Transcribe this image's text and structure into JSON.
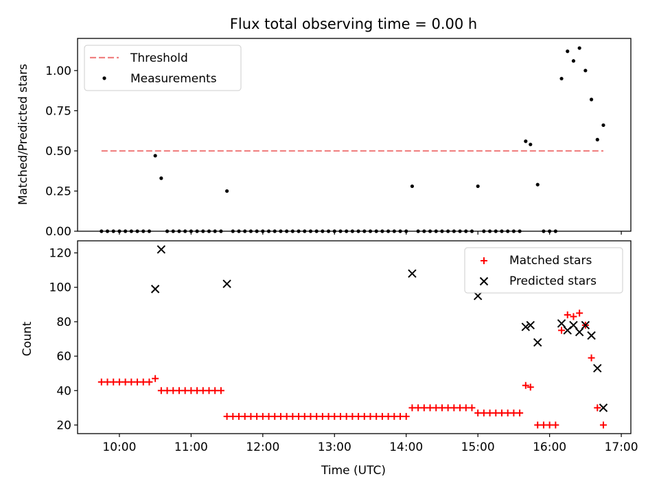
{
  "chart_data": [
    {
      "type": "scatter",
      "title": "Flux total observing time = 0.00 h",
      "ylabel": "Matched/Predicted stars",
      "xlabel": "",
      "x_axis": "time",
      "xlim": [
        "09:25",
        "17:08"
      ],
      "ylim": [
        0,
        1.2
      ],
      "yticks": [
        "0.00",
        "0.25",
        "0.50",
        "0.75",
        "1.00"
      ],
      "xticks": [
        "10:00",
        "11:00",
        "12:00",
        "13:00",
        "14:00",
        "15:00",
        "16:00",
        "17:00"
      ],
      "show_xtick_labels": false,
      "grid": false,
      "legend": "top-left",
      "threshold": {
        "name": "Threshold",
        "value": 0.5,
        "x": [
          "09:45",
          "16:45"
        ],
        "color": "#f08080",
        "style": "dashed"
      },
      "series": [
        {
          "name": "Measurements",
          "color": "#000000",
          "marker": "dot",
          "points": [
            [
              "09:45",
              0
            ],
            [
              "09:50",
              0
            ],
            [
              "09:55",
              0
            ],
            [
              "10:00",
              0
            ],
            [
              "10:05",
              0
            ],
            [
              "10:10",
              0
            ],
            [
              "10:15",
              0
            ],
            [
              "10:20",
              0
            ],
            [
              "10:25",
              0
            ],
            [
              "10:30",
              0.47
            ],
            [
              "10:35",
              0.33
            ],
            [
              "10:40",
              0
            ],
            [
              "10:45",
              0
            ],
            [
              "10:50",
              0
            ],
            [
              "10:55",
              0
            ],
            [
              "11:00",
              0
            ],
            [
              "11:05",
              0
            ],
            [
              "11:10",
              0
            ],
            [
              "11:15",
              0
            ],
            [
              "11:20",
              0
            ],
            [
              "11:25",
              0
            ],
            [
              "11:30",
              0.25
            ],
            [
              "11:35",
              0
            ],
            [
              "11:40",
              0
            ],
            [
              "11:45",
              0
            ],
            [
              "11:50",
              0
            ],
            [
              "11:55",
              0
            ],
            [
              "12:00",
              0
            ],
            [
              "12:05",
              0
            ],
            [
              "12:10",
              0
            ],
            [
              "12:15",
              0
            ],
            [
              "12:20",
              0
            ],
            [
              "12:25",
              0
            ],
            [
              "12:30",
              0
            ],
            [
              "12:35",
              0
            ],
            [
              "12:40",
              0
            ],
            [
              "12:45",
              0
            ],
            [
              "12:50",
              0
            ],
            [
              "12:55",
              0
            ],
            [
              "13:00",
              0
            ],
            [
              "13:05",
              0
            ],
            [
              "13:10",
              0
            ],
            [
              "13:15",
              0
            ],
            [
              "13:20",
              0
            ],
            [
              "13:25",
              0
            ],
            [
              "13:30",
              0
            ],
            [
              "13:35",
              0
            ],
            [
              "13:40",
              0
            ],
            [
              "13:45",
              0
            ],
            [
              "13:50",
              0
            ],
            [
              "13:55",
              0
            ],
            [
              "14:00",
              0
            ],
            [
              "14:05",
              0.28
            ],
            [
              "14:10",
              0
            ],
            [
              "14:15",
              0
            ],
            [
              "14:20",
              0
            ],
            [
              "14:25",
              0
            ],
            [
              "14:30",
              0
            ],
            [
              "14:35",
              0
            ],
            [
              "14:40",
              0
            ],
            [
              "14:45",
              0
            ],
            [
              "14:50",
              0
            ],
            [
              "14:55",
              0
            ],
            [
              "15:00",
              0.28
            ],
            [
              "15:05",
              0
            ],
            [
              "15:10",
              0
            ],
            [
              "15:15",
              0
            ],
            [
              "15:20",
              0
            ],
            [
              "15:25",
              0
            ],
            [
              "15:30",
              0
            ],
            [
              "15:35",
              0
            ],
            [
              "15:40",
              0.56
            ],
            [
              "15:44",
              0.54
            ],
            [
              "15:50",
              0.29
            ],
            [
              "15:55",
              0
            ],
            [
              "16:00",
              0
            ],
            [
              "16:05",
              0
            ],
            [
              "16:10",
              0.95
            ],
            [
              "16:15",
              1.12
            ],
            [
              "16:20",
              1.06
            ],
            [
              "16:25",
              1.14
            ],
            [
              "16:30",
              1.0
            ],
            [
              "16:35",
              0.82
            ],
            [
              "16:40",
              0.57
            ],
            [
              "16:45",
              0.66
            ]
          ]
        }
      ]
    },
    {
      "type": "scatter",
      "title": "",
      "ylabel": "Count",
      "xlabel": "Time (UTC)",
      "x_axis": "time",
      "xlim": [
        "09:25",
        "17:08"
      ],
      "ylim": [
        15,
        127
      ],
      "yticks": [
        "20",
        "40",
        "60",
        "80",
        "100",
        "120"
      ],
      "xticks": [
        "10:00",
        "11:00",
        "12:00",
        "13:00",
        "14:00",
        "15:00",
        "16:00",
        "17:00"
      ],
      "show_xtick_labels": true,
      "grid": false,
      "legend": "top-right",
      "series": [
        {
          "name": "Matched stars",
          "color": "#ff0000",
          "marker": "plus",
          "points": [
            [
              "09:45",
              45
            ],
            [
              "09:50",
              45
            ],
            [
              "09:55",
              45
            ],
            [
              "10:00",
              45
            ],
            [
              "10:05",
              45
            ],
            [
              "10:10",
              45
            ],
            [
              "10:15",
              45
            ],
            [
              "10:20",
              45
            ],
            [
              "10:25",
              45
            ],
            [
              "10:30",
              47
            ],
            [
              "10:35",
              40
            ],
            [
              "10:40",
              40
            ],
            [
              "10:45",
              40
            ],
            [
              "10:50",
              40
            ],
            [
              "10:55",
              40
            ],
            [
              "11:00",
              40
            ],
            [
              "11:05",
              40
            ],
            [
              "11:10",
              40
            ],
            [
              "11:15",
              40
            ],
            [
              "11:20",
              40
            ],
            [
              "11:25",
              40
            ],
            [
              "11:30",
              25
            ],
            [
              "11:35",
              25
            ],
            [
              "11:40",
              25
            ],
            [
              "11:45",
              25
            ],
            [
              "11:50",
              25
            ],
            [
              "11:55",
              25
            ],
            [
              "12:00",
              25
            ],
            [
              "12:05",
              25
            ],
            [
              "12:10",
              25
            ],
            [
              "12:15",
              25
            ],
            [
              "12:20",
              25
            ],
            [
              "12:25",
              25
            ],
            [
              "12:30",
              25
            ],
            [
              "12:35",
              25
            ],
            [
              "12:40",
              25
            ],
            [
              "12:45",
              25
            ],
            [
              "12:50",
              25
            ],
            [
              "12:55",
              25
            ],
            [
              "13:00",
              25
            ],
            [
              "13:05",
              25
            ],
            [
              "13:10",
              25
            ],
            [
              "13:15",
              25
            ],
            [
              "13:20",
              25
            ],
            [
              "13:25",
              25
            ],
            [
              "13:30",
              25
            ],
            [
              "13:35",
              25
            ],
            [
              "13:40",
              25
            ],
            [
              "13:45",
              25
            ],
            [
              "13:50",
              25
            ],
            [
              "13:55",
              25
            ],
            [
              "14:00",
              25
            ],
            [
              "14:05",
              30
            ],
            [
              "14:10",
              30
            ],
            [
              "14:15",
              30
            ],
            [
              "14:20",
              30
            ],
            [
              "14:25",
              30
            ],
            [
              "14:30",
              30
            ],
            [
              "14:35",
              30
            ],
            [
              "14:40",
              30
            ],
            [
              "14:45",
              30
            ],
            [
              "14:50",
              30
            ],
            [
              "14:55",
              30
            ],
            [
              "15:00",
              27
            ],
            [
              "15:05",
              27
            ],
            [
              "15:10",
              27
            ],
            [
              "15:15",
              27
            ],
            [
              "15:20",
              27
            ],
            [
              "15:25",
              27
            ],
            [
              "15:30",
              27
            ],
            [
              "15:35",
              27
            ],
            [
              "15:40",
              43
            ],
            [
              "15:44",
              42
            ],
            [
              "15:50",
              20
            ],
            [
              "15:55",
              20
            ],
            [
              "16:00",
              20
            ],
            [
              "16:05",
              20
            ],
            [
              "16:10",
              75
            ],
            [
              "16:15",
              84
            ],
            [
              "16:20",
              83
            ],
            [
              "16:25",
              85
            ],
            [
              "16:30",
              78
            ],
            [
              "16:35",
              59
            ],
            [
              "16:40",
              30
            ],
            [
              "16:45",
              20
            ]
          ]
        },
        {
          "name": "Predicted stars",
          "color": "#000000",
          "marker": "x",
          "points": [
            [
              "10:30",
              99
            ],
            [
              "10:35",
              122
            ],
            [
              "11:30",
              102
            ],
            [
              "14:05",
              108
            ],
            [
              "15:00",
              95
            ],
            [
              "15:40",
              77
            ],
            [
              "15:44",
              78
            ],
            [
              "15:50",
              68
            ],
            [
              "16:10",
              79
            ],
            [
              "16:15",
              75
            ],
            [
              "16:20",
              78
            ],
            [
              "16:25",
              74
            ],
            [
              "16:30",
              78
            ],
            [
              "16:35",
              72
            ],
            [
              "16:40",
              53
            ],
            [
              "16:45",
              30
            ]
          ]
        }
      ]
    }
  ]
}
